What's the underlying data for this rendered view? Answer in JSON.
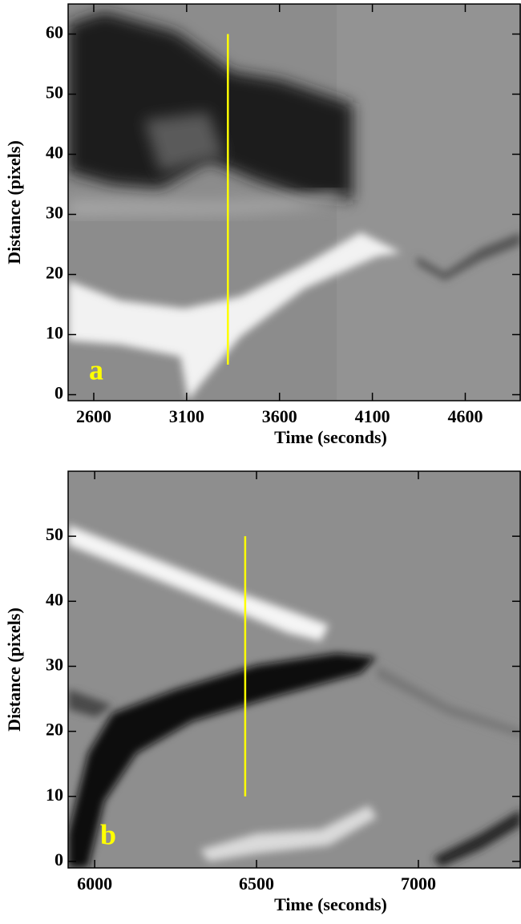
{
  "chart_data": [
    {
      "type": "image",
      "xlabel": "Time (seconds)",
      "ylabel": "Distance (pixels)",
      "xlim": [
        2462,
        4900
      ],
      "ylim": [
        -1,
        65
      ],
      "xticks": [
        2600,
        3100,
        3600,
        4100,
        4600
      ],
      "yticks": [
        0,
        10,
        20,
        30,
        40,
        50,
        60
      ],
      "panel_label": "a",
      "marker": {
        "x": 3322,
        "y": [
          5,
          60
        ],
        "color": "#ffff00"
      }
    },
    {
      "type": "image",
      "xlabel": "Time (seconds)",
      "ylabel": "Distance (pixels)",
      "xlim": [
        5918,
        7317
      ],
      "ylim": [
        -1,
        60
      ],
      "xticks": [
        6000,
        6500,
        7000
      ],
      "yticks": [
        0,
        10,
        20,
        30,
        40,
        50
      ],
      "panel_label": "b",
      "marker": {
        "x": 6465,
        "y": [
          10,
          50
        ],
        "color": "#ffff00"
      }
    }
  ]
}
